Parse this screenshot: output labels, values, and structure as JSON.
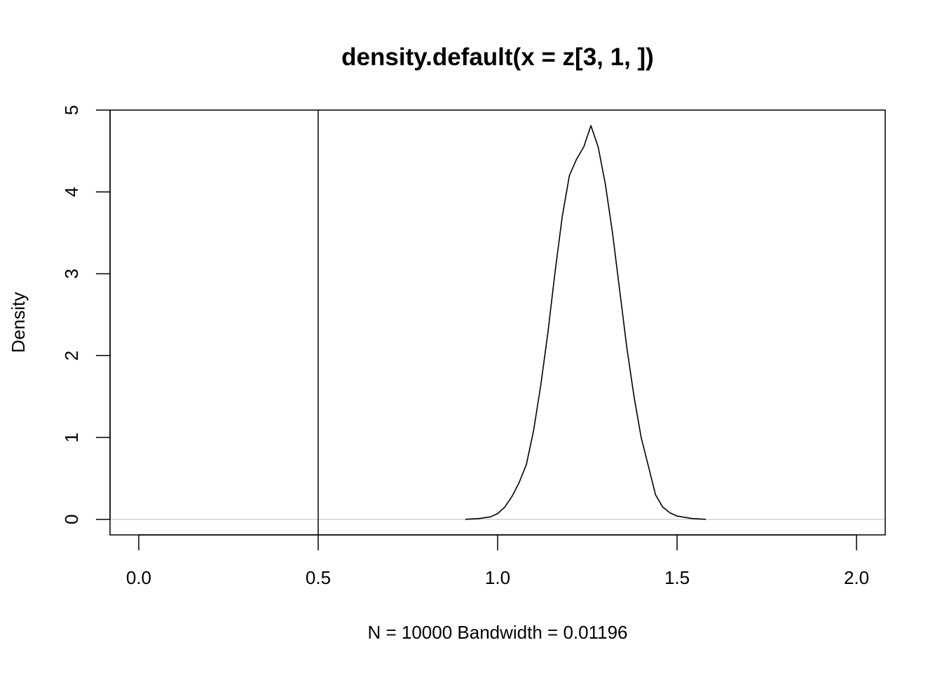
{
  "chart_data": {
    "type": "line",
    "title": "density.default(x = z[3, 1, ])",
    "xlabel": "N = 10000   Bandwidth = 0.01196",
    "ylabel": "Density",
    "xlim": [
      -0.08,
      2.08
    ],
    "ylim": [
      -0.19,
      5.0
    ],
    "x_ticks": [
      0.0,
      0.5,
      1.0,
      1.5,
      2.0
    ],
    "x_tick_labels": [
      "0.0",
      "0.5",
      "1.0",
      "1.5",
      "2.0"
    ],
    "y_ticks": [
      0,
      1,
      2,
      3,
      4,
      5
    ],
    "y_tick_labels": [
      "0",
      "1",
      "2",
      "3",
      "4",
      "5"
    ],
    "grid": false,
    "baseline": {
      "y": 0,
      "color": "#bebebe"
    },
    "vline": {
      "x": 0.5,
      "color": "#000000"
    },
    "series": [
      {
        "color": "#000000",
        "x": [
          0.91,
          0.95,
          0.98,
          1.0,
          1.02,
          1.04,
          1.06,
          1.08,
          1.1,
          1.12,
          1.14,
          1.16,
          1.18,
          1.2,
          1.22,
          1.24,
          1.26,
          1.28,
          1.3,
          1.32,
          1.34,
          1.36,
          1.38,
          1.4,
          1.42,
          1.44,
          1.46,
          1.48,
          1.5,
          1.54,
          1.58
        ],
        "y": [
          0.0,
          0.01,
          0.03,
          0.07,
          0.15,
          0.28,
          0.45,
          0.67,
          1.08,
          1.63,
          2.28,
          3.02,
          3.7,
          4.2,
          4.4,
          4.55,
          4.81,
          4.55,
          4.1,
          3.5,
          2.8,
          2.1,
          1.5,
          1.0,
          0.65,
          0.3,
          0.15,
          0.08,
          0.04,
          0.01,
          0.0
        ]
      }
    ]
  }
}
